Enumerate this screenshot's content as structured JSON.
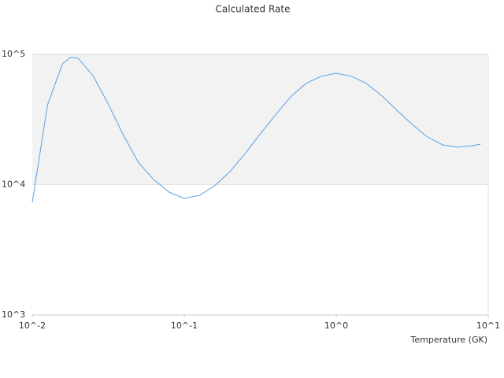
{
  "chart_data": {
    "type": "line",
    "title": "Calculated Rate",
    "x_label": "Temperature (GK)",
    "x": [
      0.01,
      0.0126,
      0.0158,
      0.0178,
      0.02,
      0.0251,
      0.0316,
      0.0398,
      0.0501,
      0.0631,
      0.0794,
      0.1,
      0.126,
      0.158,
      0.2,
      0.251,
      0.316,
      0.398,
      0.501,
      0.631,
      0.794,
      1,
      1.26,
      1.58,
      2,
      2.51,
      3.16,
      3.98,
      5.01,
      6.31,
      7.94,
      8.91
    ],
    "series": [
      {
        "color": "#5b9fe3",
        "values": [
          7310,
          41000,
          84600,
          94600,
          93300,
          68700,
          41600,
          23900,
          14700,
          10900,
          8770,
          7840,
          8280,
          9790,
          12600,
          17300,
          24500,
          34300,
          47200,
          59700,
          67800,
          71600,
          67800,
          59700,
          47900,
          37200,
          29000,
          23200,
          20200,
          19400,
          19900,
          20500
        ]
      }
    ],
    "x_log": true,
    "y_log": true,
    "xlim": [
      0.01,
      10
    ],
    "ylim": [
      1000,
      100000
    ],
    "xticks": [
      {
        "value": 0.01,
        "label": "10^-2"
      },
      {
        "value": 0.1,
        "label": "10^-1"
      },
      {
        "value": 1,
        "label": "10^0"
      },
      {
        "value": 10,
        "label": "10^1"
      }
    ],
    "yticks": [
      {
        "value": 1000,
        "label": "10^3"
      },
      {
        "value": 10000,
        "label": "10^4"
      },
      {
        "value": 100000,
        "label": "10^5"
      }
    ],
    "grid": true,
    "alternate_grid_color": "#f2f2f2"
  }
}
